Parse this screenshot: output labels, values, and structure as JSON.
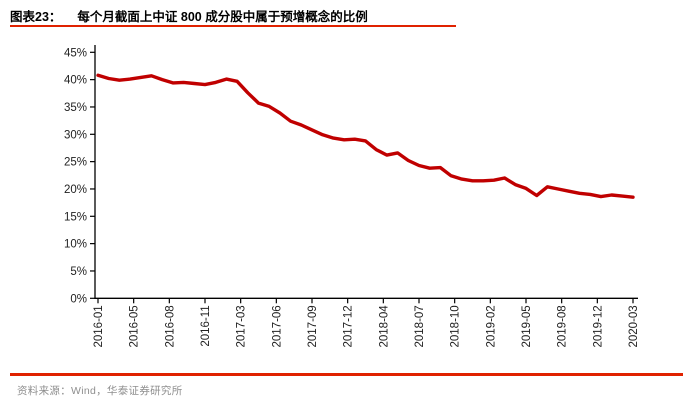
{
  "header": {
    "figure_label": "图表23：",
    "title": "每个月截面上中证 800 成分股中属于预增概念的比例"
  },
  "footer": {
    "source": "资料来源：Wind，华泰证券研究所"
  },
  "colors": {
    "series_line": "#c00000",
    "divider_red": "#e02200",
    "axis": "#000000",
    "tick_label": "#1f1f1f",
    "source_text": "#8f8f8f"
  },
  "chart_data": {
    "type": "line",
    "title": "每个月截面上中证 800 成分股中属于预增概念的比例",
    "xlabel": "",
    "ylabel": "",
    "ylim": [
      0,
      45
    ],
    "grid": false,
    "legend": "none",
    "y_tick_values": [
      0,
      5,
      10,
      15,
      20,
      25,
      30,
      35,
      40,
      45
    ],
    "y_tick_labels": [
      "0%",
      "5%",
      "10%",
      "15%",
      "20%",
      "25%",
      "30%",
      "35%",
      "40%",
      "45%"
    ],
    "x_tick_labels": [
      "2016-01",
      "2016-05",
      "2016-08",
      "2016-11",
      "2017-03",
      "2017-06",
      "2017-09",
      "2017-12",
      "2018-04",
      "2018-07",
      "2018-10",
      "2019-02",
      "2019-05",
      "2019-08",
      "2019-12",
      "2020-03"
    ],
    "x": [
      "2016-01",
      "2016-02",
      "2016-03",
      "2016-04",
      "2016-05",
      "2016-06",
      "2016-07",
      "2016-08",
      "2016-09",
      "2016-10",
      "2016-11",
      "2016-12",
      "2017-01",
      "2017-02",
      "2017-03",
      "2017-04",
      "2017-05",
      "2017-06",
      "2017-07",
      "2017-08",
      "2017-09",
      "2017-10",
      "2017-11",
      "2017-12",
      "2018-01",
      "2018-02",
      "2018-03",
      "2018-04",
      "2018-05",
      "2018-06",
      "2018-07",
      "2018-08",
      "2018-09",
      "2018-10",
      "2018-11",
      "2018-12",
      "2019-01",
      "2019-02",
      "2019-03",
      "2019-04",
      "2019-05",
      "2019-06",
      "2019-07",
      "2019-08",
      "2019-09",
      "2019-10",
      "2019-11",
      "2019-12",
      "2020-01",
      "2020-02",
      "2020-03"
    ],
    "values": [
      40.8,
      40.2,
      39.9,
      40.1,
      40.4,
      40.7,
      40.0,
      39.4,
      39.5,
      39.3,
      39.1,
      39.5,
      40.1,
      39.7,
      37.6,
      35.7,
      35.1,
      33.9,
      32.4,
      31.7,
      30.8,
      29.9,
      29.3,
      29.0,
      29.1,
      28.8,
      27.2,
      26.2,
      26.6,
      25.2,
      24.3,
      23.8,
      23.9,
      22.4,
      21.8,
      21.5,
      21.5,
      21.6,
      22.0,
      20.8,
      20.1,
      18.8,
      20.4,
      20.0,
      19.6,
      19.2,
      19.0,
      18.6,
      18.9,
      18.7,
      18.5
    ]
  }
}
